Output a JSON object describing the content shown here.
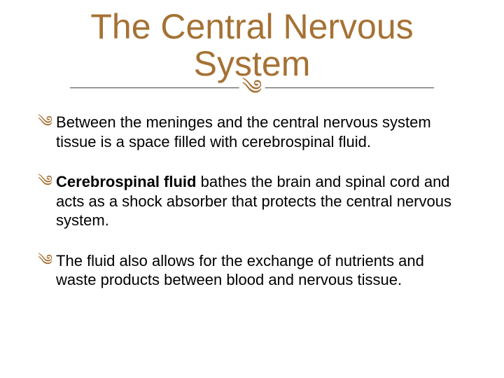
{
  "colors": {
    "title": "#a57134",
    "flourish": "#a57134",
    "bullet_glyph": "#a57134",
    "text": "#000000",
    "background": "#ffffff"
  },
  "title": "The Central Nervous System",
  "flourish_symbol": "༄",
  "bullets": [
    {
      "prefix": "",
      "bold": "",
      "text": "Between the meninges and the central nervous system tissue is a space filled with cerebrospinal fluid."
    },
    {
      "prefix": "",
      "bold": "Cerebrospinal fluid",
      "text": " bathes the brain and spinal cord and acts as a shock absorber that protects the central nervous system."
    },
    {
      "prefix": "",
      "bold": "",
      "text": "The fluid also allows for the exchange of nutrients and waste products between blood and nervous tissue."
    }
  ]
}
